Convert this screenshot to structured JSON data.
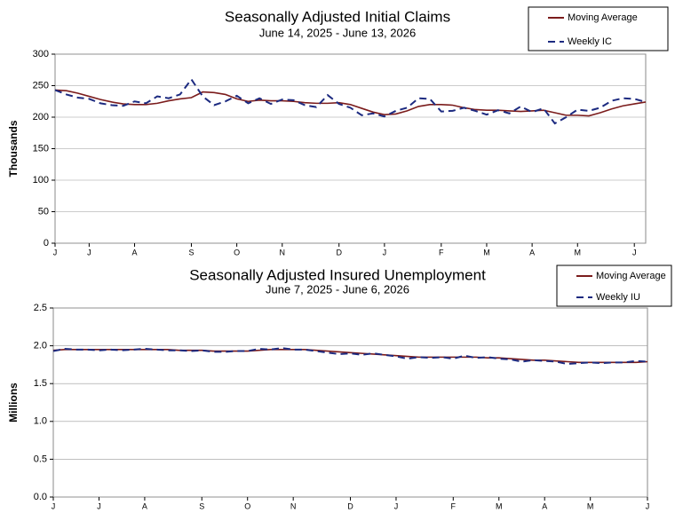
{
  "chart_data": [
    {
      "type": "line",
      "title": "Seasonally Adjusted Initial Claims",
      "subtitle": "June 14, 2025 - June 13, 2026",
      "y_label": "Thousands",
      "categories": [
        "J",
        null,
        null,
        "J",
        null,
        null,
        null,
        "A",
        null,
        null,
        null,
        null,
        "S",
        null,
        null,
        null,
        "O",
        null,
        null,
        null,
        "N",
        null,
        null,
        null,
        null,
        "D",
        null,
        null,
        null,
        "J",
        null,
        null,
        null,
        null,
        "F",
        null,
        null,
        null,
        "M",
        null,
        null,
        null,
        "A",
        null,
        null,
        null,
        "M",
        null,
        null,
        null,
        null,
        "J",
        null
      ],
      "ylim": [
        0,
        300
      ],
      "yticks": [
        0,
        50,
        100,
        150,
        200,
        250,
        300
      ],
      "series": [
        {
          "name": "Moving Average",
          "color": "#7b1c1c",
          "dash": false,
          "values": [
            243,
            242,
            238,
            233,
            228,
            224,
            221,
            220,
            220,
            222,
            226,
            229,
            231,
            240,
            239,
            236,
            229,
            225,
            227,
            226,
            226,
            225,
            223,
            222,
            222,
            223,
            220,
            214,
            208,
            204,
            205,
            210,
            217,
            220,
            220,
            219,
            215,
            212,
            211,
            211,
            210,
            209,
            210,
            211,
            207,
            203,
            203,
            202,
            207,
            213,
            218,
            221,
            224
          ]
        },
        {
          "name": "Weekly IC",
          "color": "#1c2a80",
          "dash": true,
          "values": [
            243,
            236,
            231,
            229,
            222,
            219,
            218,
            225,
            222,
            233,
            230,
            236,
            260,
            233,
            219,
            225,
            234,
            222,
            230,
            221,
            228,
            227,
            219,
            216,
            235,
            221,
            215,
            203,
            206,
            201,
            210,
            215,
            230,
            229,
            209,
            210,
            215,
            210,
            204,
            211,
            206,
            217,
            208,
            214,
            190,
            200,
            212,
            210,
            215,
            226,
            230,
            229,
            224
          ]
        }
      ]
    },
    {
      "type": "line",
      "title": "Seasonally Adjusted Insured Unemployment",
      "subtitle": "June 7, 2025 - June 6, 2026",
      "y_label": "Millions",
      "categories": [
        "J",
        null,
        null,
        null,
        "J",
        null,
        null,
        null,
        "A",
        null,
        null,
        null,
        null,
        "S",
        null,
        null,
        null,
        "O",
        null,
        null,
        null,
        "N",
        null,
        null,
        null,
        null,
        "D",
        null,
        null,
        null,
        "J",
        null,
        null,
        null,
        null,
        "F",
        null,
        null,
        null,
        "M",
        null,
        null,
        null,
        "A",
        null,
        null,
        null,
        "M",
        null,
        null,
        null,
        null,
        "J"
      ],
      "ylim": [
        0,
        2.5
      ],
      "yticks": [
        {
          "value": 0,
          "label": "0.0"
        },
        0.5,
        {
          "value": 1,
          "label": "1.0"
        },
        1.5,
        {
          "value": 2,
          "label": "2.0"
        },
        2.5
      ],
      "series": [
        {
          "name": "Moving Average",
          "color": "#7b1c1c",
          "dash": false,
          "values": [
            1.94,
            1.95,
            1.95,
            1.95,
            1.95,
            1.95,
            1.95,
            1.95,
            1.95,
            1.95,
            1.95,
            1.94,
            1.94,
            1.94,
            1.93,
            1.93,
            1.93,
            1.93,
            1.94,
            1.95,
            1.95,
            1.95,
            1.95,
            1.94,
            1.93,
            1.92,
            1.91,
            1.9,
            1.89,
            1.88,
            1.87,
            1.86,
            1.85,
            1.85,
            1.85,
            1.85,
            1.85,
            1.85,
            1.84,
            1.84,
            1.83,
            1.82,
            1.81,
            1.81,
            1.8,
            1.79,
            1.78,
            1.78,
            1.78,
            1.78,
            1.78,
            1.78,
            1.79
          ]
        },
        {
          "name": "Weekly IU",
          "color": "#1c2a80",
          "dash": true,
          "values": [
            1.93,
            1.96,
            1.95,
            1.95,
            1.94,
            1.95,
            1.94,
            1.95,
            1.96,
            1.95,
            1.94,
            1.94,
            1.93,
            1.94,
            1.92,
            1.92,
            1.93,
            1.93,
            1.96,
            1.95,
            1.97,
            1.95,
            1.95,
            1.93,
            1.91,
            1.89,
            1.9,
            1.88,
            1.9,
            1.88,
            1.86,
            1.83,
            1.85,
            1.84,
            1.85,
            1.83,
            1.87,
            1.84,
            1.85,
            1.83,
            1.82,
            1.79,
            1.81,
            1.8,
            1.79,
            1.76,
            1.77,
            1.78,
            1.77,
            1.78,
            1.78,
            1.8,
            1.79
          ]
        }
      ]
    }
  ]
}
